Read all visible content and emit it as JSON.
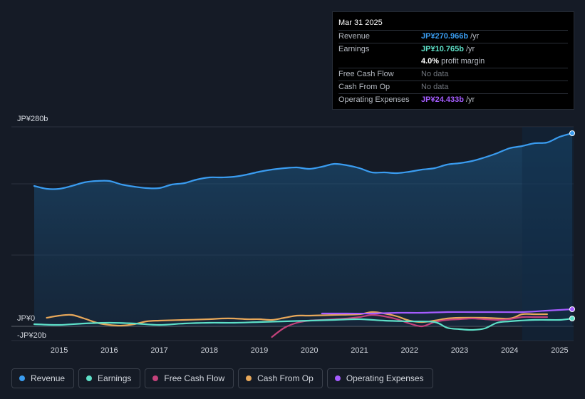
{
  "tooltip": {
    "date": "Mar 31 2025",
    "rows": [
      {
        "label": "Revenue",
        "value": "JP¥270.966b",
        "unit": " /yr"
      },
      {
        "label": "Earnings",
        "value": "JP¥10.765b",
        "unit": " /yr"
      },
      {
        "label": "",
        "value": "4.0%",
        "unit": " profit margin"
      },
      {
        "label": "Free Cash Flow",
        "value": "No data",
        "unit": ""
      },
      {
        "label": "Cash From Op",
        "value": "No data",
        "unit": ""
      },
      {
        "label": "Operating Expenses",
        "value": "JP¥24.433b",
        "unit": " /yr"
      }
    ]
  },
  "legend": [
    {
      "label": "Revenue",
      "color": "#3a9cf0"
    },
    {
      "label": "Earnings",
      "color": "#5ee0c8"
    },
    {
      "label": "Free Cash Flow",
      "color": "#c4427b"
    },
    {
      "label": "Cash From Op",
      "color": "#e8a85a"
    },
    {
      "label": "Operating Expenses",
      "color": "#a55cff"
    }
  ],
  "chart_data": {
    "type": "line",
    "title": "",
    "xlabel": "",
    "ylabel": "",
    "ylim": [
      -20,
      280
    ],
    "y_tick_labels": [
      "JP¥280b",
      "JP¥0",
      "-JP¥20b"
    ],
    "y_ticks": [
      280,
      0,
      -20
    ],
    "x_tick_labels": [
      "2015",
      "2016",
      "2017",
      "2018",
      "2019",
      "2020",
      "2021",
      "2022",
      "2023",
      "2024",
      "2025"
    ],
    "x_ticks": [
      2015,
      2016,
      2017,
      2018,
      2019,
      2020,
      2021,
      2022,
      2023,
      2024,
      2025
    ],
    "gridlines_y": [
      280,
      200,
      100,
      0
    ],
    "highlight_range": [
      2024.25,
      2025.25
    ],
    "series": [
      {
        "name": "Revenue",
        "color": "#3a9cf0",
        "x": [
          2014.5,
          2014.75,
          2015.0,
          2015.25,
          2015.5,
          2015.75,
          2016.0,
          2016.25,
          2016.5,
          2016.75,
          2017.0,
          2017.25,
          2017.5,
          2017.75,
          2018.0,
          2018.25,
          2018.5,
          2018.75,
          2019.0,
          2019.25,
          2019.5,
          2019.75,
          2020.0,
          2020.25,
          2020.5,
          2020.75,
          2021.0,
          2021.25,
          2021.5,
          2021.75,
          2022.0,
          2022.25,
          2022.5,
          2022.75,
          2023.0,
          2023.25,
          2023.5,
          2023.75,
          2024.0,
          2024.25,
          2024.5,
          2024.75,
          2025.0,
          2025.25
        ],
        "values": [
          197,
          193,
          193,
          197,
          202,
          204,
          204,
          199,
          196,
          194,
          194,
          199,
          201,
          206,
          209,
          209,
          210,
          213,
          217,
          220,
          222,
          223,
          221,
          224,
          228,
          226,
          222,
          216,
          216,
          215,
          217,
          220,
          222,
          227,
          229,
          232,
          237,
          243,
          250,
          253,
          257,
          258,
          266,
          271
        ]
      },
      {
        "name": "Earnings",
        "color": "#5ee0c8",
        "x": [
          2014.5,
          2015.0,
          2015.5,
          2016.0,
          2016.5,
          2017.0,
          2017.5,
          2018.0,
          2018.5,
          2019.0,
          2019.5,
          2020.0,
          2020.5,
          2021.0,
          2021.5,
          2022.0,
          2022.5,
          2022.75,
          2023.0,
          2023.25,
          2023.5,
          2023.75,
          2024.0,
          2024.5,
          2025.0,
          2025.25
        ],
        "values": [
          3,
          2,
          4,
          5,
          4,
          2,
          4,
          5,
          5,
          6,
          7,
          8,
          9,
          10,
          8,
          7,
          6,
          -2,
          -4,
          -5,
          -3,
          5,
          7,
          9,
          9,
          11
        ]
      },
      {
        "name": "Free Cash Flow",
        "color": "#c4427b",
        "x": [
          2019.25,
          2019.5,
          2019.75,
          2020.0,
          2020.25,
          2020.5,
          2020.75,
          2021.0,
          2021.25,
          2021.5,
          2021.75,
          2022.0,
          2022.25,
          2022.5,
          2022.75,
          2023.0,
          2023.25,
          2023.5,
          2023.75,
          2024.0,
          2024.25,
          2024.5,
          2024.75
        ],
        "values": [
          -15,
          -2,
          5,
          8,
          9,
          10,
          11,
          13,
          16,
          14,
          10,
          4,
          0,
          6,
          9,
          10,
          11,
          10,
          9,
          10,
          13,
          13,
          13
        ]
      },
      {
        "name": "Cash From Op",
        "color": "#e8a85a",
        "x": [
          2014.75,
          2015.0,
          2015.25,
          2015.5,
          2015.75,
          2016.0,
          2016.25,
          2016.5,
          2016.75,
          2017.0,
          2017.5,
          2018.0,
          2018.25,
          2018.5,
          2018.75,
          2019.0,
          2019.25,
          2019.5,
          2019.75,
          2020.0,
          2020.5,
          2021.0,
          2021.25,
          2021.5,
          2021.75,
          2022.0,
          2022.25,
          2022.5,
          2022.75,
          2023.0,
          2023.5,
          2024.0,
          2024.25,
          2024.5,
          2024.75
        ],
        "values": [
          12,
          15,
          16,
          11,
          5,
          2,
          1,
          3,
          7,
          8,
          9,
          10,
          11,
          11,
          10,
          10,
          9,
          12,
          15,
          15,
          16,
          17,
          20,
          18,
          14,
          8,
          6,
          8,
          11,
          12,
          12,
          11,
          17,
          17,
          17
        ]
      },
      {
        "name": "Operating Expenses",
        "color": "#a55cff",
        "x": [
          2020.25,
          2020.75,
          2021.25,
          2021.75,
          2022.25,
          2022.75,
          2023.25,
          2023.75,
          2024.25,
          2024.75,
          2025.25
        ],
        "values": [
          18,
          18,
          18,
          19,
          19,
          20,
          20,
          20,
          20,
          22,
          24
        ]
      }
    ]
  }
}
